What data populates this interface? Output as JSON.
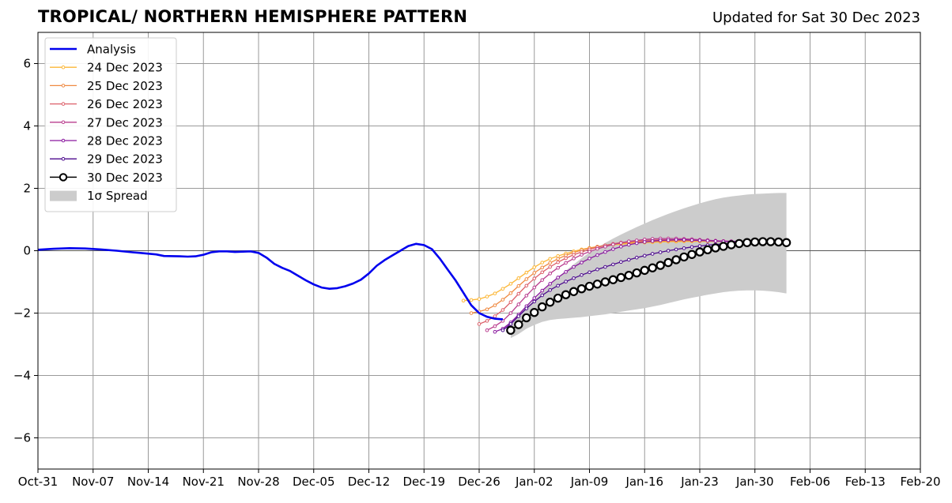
{
  "chart_data": {
    "type": "line",
    "title": "TROPICAL/ NORTHERN HEMISPHERE PATTERN",
    "updated": "Updated for Sat 30 Dec 2023",
    "xlabel": "",
    "ylabel": "",
    "xlim": [
      "2023-10-31",
      "2024-02-20"
    ],
    "ylim": [
      -7,
      7
    ],
    "grid": true,
    "legend_position": "top-left",
    "x_ticks": [
      {
        "date": "2023-10-31",
        "label": "Oct-31"
      },
      {
        "date": "2023-11-07",
        "label": "Nov-07"
      },
      {
        "date": "2023-11-14",
        "label": "Nov-14"
      },
      {
        "date": "2023-11-21",
        "label": "Nov-21"
      },
      {
        "date": "2023-11-28",
        "label": "Nov-28"
      },
      {
        "date": "2023-12-05",
        "label": "Dec-05"
      },
      {
        "date": "2023-12-12",
        "label": "Dec-12"
      },
      {
        "date": "2023-12-19",
        "label": "Dec-19"
      },
      {
        "date": "2023-12-26",
        "label": "Dec-26"
      },
      {
        "date": "2024-01-02",
        "label": "Jan-02"
      },
      {
        "date": "2024-01-09",
        "label": "Jan-09"
      },
      {
        "date": "2024-01-16",
        "label": "Jan-16"
      },
      {
        "date": "2024-01-23",
        "label": "Jan-23"
      },
      {
        "date": "2024-01-30",
        "label": "Jan-30"
      },
      {
        "date": "2024-02-06",
        "label": "Feb-06"
      },
      {
        "date": "2024-02-13",
        "label": "Feb-13"
      },
      {
        "date": "2024-02-20",
        "label": "Feb-20"
      }
    ],
    "y_ticks": [
      {
        "value": -6,
        "label": "−6"
      },
      {
        "value": -4,
        "label": "−4"
      },
      {
        "value": -2,
        "label": "−2"
      },
      {
        "value": 0,
        "label": "0"
      },
      {
        "value": 2,
        "label": "2"
      },
      {
        "value": 4,
        "label": "4"
      },
      {
        "value": 6,
        "label": "6"
      }
    ],
    "analysis": {
      "name": "Analysis",
      "color": "#0000ee",
      "points": [
        [
          "2023-10-31",
          0.03
        ],
        [
          "2023-11-02",
          0.06
        ],
        [
          "2023-11-04",
          0.08
        ],
        [
          "2023-11-06",
          0.07
        ],
        [
          "2023-11-08",
          0.04
        ],
        [
          "2023-11-10",
          0.0
        ],
        [
          "2023-11-12",
          -0.05
        ],
        [
          "2023-11-13",
          -0.07
        ],
        [
          "2023-11-15",
          -0.12
        ],
        [
          "2023-11-16",
          -0.17
        ],
        [
          "2023-11-18",
          -0.18
        ],
        [
          "2023-11-19",
          -0.19
        ],
        [
          "2023-11-20",
          -0.18
        ],
        [
          "2023-11-21",
          -0.13
        ],
        [
          "2023-11-22",
          -0.05
        ],
        [
          "2023-11-23",
          -0.02
        ],
        [
          "2023-11-24",
          -0.02
        ],
        [
          "2023-11-25",
          -0.04
        ],
        [
          "2023-11-26",
          -0.03
        ],
        [
          "2023-11-27",
          -0.02
        ],
        [
          "2023-11-28",
          -0.07
        ],
        [
          "2023-11-29",
          -0.22
        ],
        [
          "2023-11-30",
          -0.42
        ],
        [
          "2023-12-01",
          -0.55
        ],
        [
          "2023-12-02",
          -0.65
        ],
        [
          "2023-12-03",
          -0.8
        ],
        [
          "2023-12-04",
          -0.95
        ],
        [
          "2023-12-05",
          -1.08
        ],
        [
          "2023-12-06",
          -1.18
        ],
        [
          "2023-12-07",
          -1.22
        ],
        [
          "2023-12-08",
          -1.2
        ],
        [
          "2023-12-09",
          -1.14
        ],
        [
          "2023-12-10",
          -1.05
        ],
        [
          "2023-12-11",
          -0.93
        ],
        [
          "2023-12-12",
          -0.73
        ],
        [
          "2023-12-13",
          -0.48
        ],
        [
          "2023-12-14",
          -0.3
        ],
        [
          "2023-12-15",
          -0.15
        ],
        [
          "2023-12-16",
          0.0
        ],
        [
          "2023-12-17",
          0.15
        ],
        [
          "2023-12-18",
          0.22
        ],
        [
          "2023-12-19",
          0.18
        ],
        [
          "2023-12-20",
          0.05
        ],
        [
          "2023-12-21",
          -0.25
        ],
        [
          "2023-12-22",
          -0.6
        ],
        [
          "2023-12-23",
          -0.95
        ],
        [
          "2023-12-24",
          -1.35
        ],
        [
          "2023-12-25",
          -1.75
        ],
        [
          "2023-12-26",
          -2.0
        ],
        [
          "2023-12-27",
          -2.12
        ],
        [
          "2023-12-28",
          -2.18
        ],
        [
          "2023-12-29",
          -2.2
        ]
      ]
    },
    "series": [
      {
        "name": "24 Dec 2023",
        "color": "#fcb737",
        "start": "2023-12-24",
        "values": [
          -1.6,
          -1.58,
          -1.55,
          -1.47,
          -1.37,
          -1.22,
          -1.06,
          -0.88,
          -0.7,
          -0.53,
          -0.38,
          -0.26,
          -0.17,
          -0.09,
          -0.02,
          0.04,
          0.09,
          0.13,
          0.16,
          0.19,
          0.21,
          0.23,
          0.25,
          0.26,
          0.27,
          0.28,
          0.29,
          0.29,
          0.3,
          0.3,
          0.3,
          0.3,
          0.3,
          0.3,
          0.3,
          0.3
        ]
      },
      {
        "name": "25 Dec 2023",
        "color": "#ef8a42",
        "start": "2023-12-25",
        "values": [
          -2.0,
          -1.95,
          -1.88,
          -1.75,
          -1.57,
          -1.36,
          -1.13,
          -0.91,
          -0.71,
          -0.54,
          -0.39,
          -0.26,
          -0.15,
          -0.06,
          0.02,
          0.08,
          0.13,
          0.17,
          0.21,
          0.24,
          0.26,
          0.28,
          0.29,
          0.3,
          0.31,
          0.31,
          0.32,
          0.32,
          0.32,
          0.32,
          0.32,
          0.31,
          0.3,
          0.3,
          0.3
        ]
      },
      {
        "name": "26 Dec 2023",
        "color": "#dc5f69",
        "start": "2023-12-26",
        "values": [
          -2.35,
          -2.25,
          -2.1,
          -1.9,
          -1.65,
          -1.38,
          -1.12,
          -0.89,
          -0.69,
          -0.52,
          -0.37,
          -0.24,
          -0.13,
          -0.04,
          0.04,
          0.11,
          0.17,
          0.22,
          0.26,
          0.29,
          0.31,
          0.33,
          0.34,
          0.35,
          0.35,
          0.35,
          0.35,
          0.34,
          0.33,
          0.33,
          0.32,
          0.31,
          0.3,
          0.3
        ]
      },
      {
        "name": "27 Dec 2023",
        "color": "#b93c8e",
        "start": "2023-12-27",
        "values": [
          -2.55,
          -2.42,
          -2.25,
          -2.0,
          -1.72,
          -1.44,
          -1.18,
          -0.94,
          -0.73,
          -0.55,
          -0.39,
          -0.25,
          -0.13,
          -0.03,
          0.06,
          0.13,
          0.2,
          0.25,
          0.3,
          0.33,
          0.36,
          0.38,
          0.39,
          0.39,
          0.39,
          0.38,
          0.37,
          0.35,
          0.34,
          0.32,
          0.31,
          0.3,
          0.3
        ]
      },
      {
        "name": "28 Dec 2023",
        "color": "#8a189f",
        "start": "2023-12-28",
        "values": [
          -2.6,
          -2.5,
          -2.3,
          -2.05,
          -1.78,
          -1.52,
          -1.28,
          -1.06,
          -0.86,
          -0.68,
          -0.52,
          -0.38,
          -0.25,
          -0.14,
          -0.04,
          0.05,
          0.13,
          0.19,
          0.24,
          0.28,
          0.31,
          0.33,
          0.34,
          0.35,
          0.35,
          0.34,
          0.33,
          0.32,
          0.31,
          0.3,
          0.3,
          0.3
        ]
      },
      {
        "name": "29 Dec 2023",
        "color": "#4c0a8e",
        "start": "2023-12-29",
        "values": [
          -2.55,
          -2.35,
          -2.1,
          -1.85,
          -1.63,
          -1.43,
          -1.26,
          -1.12,
          -0.99,
          -0.88,
          -0.78,
          -0.69,
          -0.6,
          -0.52,
          -0.44,
          -0.36,
          -0.29,
          -0.22,
          -0.16,
          -0.1,
          -0.05,
          0.0,
          0.04,
          0.08,
          0.12,
          0.15,
          0.18,
          0.2,
          0.22,
          0.24,
          0.25
        ]
      },
      {
        "name": "30 Dec 2023",
        "color": "#000000",
        "fill": "#ffffff",
        "start": "2023-12-30",
        "values": [
          -2.55,
          -2.37,
          -2.15,
          -1.98,
          -1.8,
          -1.65,
          -1.52,
          -1.41,
          -1.31,
          -1.22,
          -1.14,
          -1.07,
          -1.0,
          -0.93,
          -0.86,
          -0.79,
          -0.71,
          -0.63,
          -0.55,
          -0.47,
          -0.38,
          -0.29,
          -0.2,
          -0.12,
          -0.04,
          0.03,
          0.09,
          0.14,
          0.19,
          0.23,
          0.26,
          0.28,
          0.29,
          0.29,
          0.28,
          0.26
        ]
      }
    ],
    "spread": {
      "name": "1σ Spread",
      "color": "#cccccc",
      "start": "2023-12-30",
      "upper": [
        -2.3,
        -2.07,
        -1.8,
        -1.58,
        -1.32,
        -1.08,
        -0.85,
        -0.64,
        -0.44,
        -0.24,
        -0.06,
        0.1,
        0.25,
        0.39,
        0.52,
        0.64,
        0.76,
        0.87,
        0.98,
        1.08,
        1.18,
        1.27,
        1.36,
        1.44,
        1.52,
        1.59,
        1.65,
        1.7,
        1.74,
        1.77,
        1.8,
        1.82,
        1.83,
        1.84,
        1.85,
        1.85
      ],
      "lower": [
        -2.8,
        -2.67,
        -2.5,
        -2.38,
        -2.28,
        -2.22,
        -2.19,
        -2.17,
        -2.15,
        -2.13,
        -2.1,
        -2.07,
        -2.04,
        -2.0,
        -1.96,
        -1.92,
        -1.88,
        -1.84,
        -1.79,
        -1.74,
        -1.68,
        -1.62,
        -1.56,
        -1.51,
        -1.46,
        -1.41,
        -1.37,
        -1.33,
        -1.3,
        -1.28,
        -1.27,
        -1.27,
        -1.28,
        -1.3,
        -1.33,
        -1.37
      ]
    }
  }
}
